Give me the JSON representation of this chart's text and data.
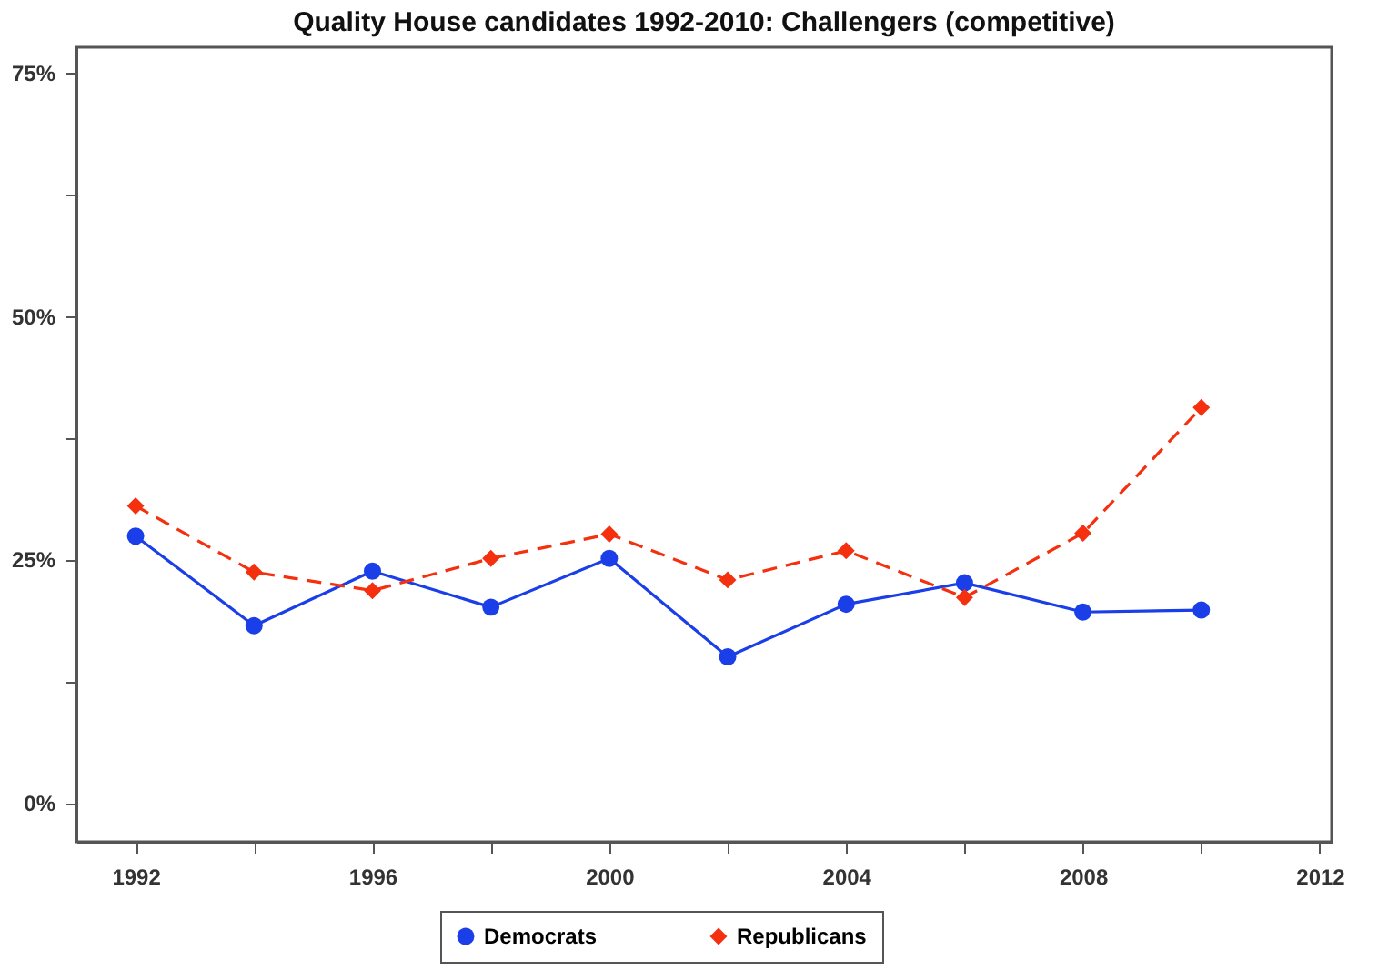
{
  "chart_data": {
    "type": "line",
    "title": "Quality House candidates 1992-2010: Challengers (competitive)",
    "x": [
      1992,
      1994,
      1996,
      1998,
      2000,
      2002,
      2004,
      2006,
      2008,
      2010
    ],
    "series": [
      {
        "name": "Democrats",
        "color": "#1a3fe8",
        "marker": "circle",
        "line_style": "solid",
        "values": [
          27.4,
          18.2,
          23.8,
          20.1,
          25.1,
          15.0,
          20.4,
          22.6,
          19.6,
          19.8
        ]
      },
      {
        "name": "Republicans",
        "color": "#f4300f",
        "marker": "diamond",
        "line_style": "dashed",
        "values": [
          30.5,
          23.7,
          21.8,
          25.1,
          27.6,
          22.9,
          25.9,
          21.1,
          27.7,
          40.6
        ]
      }
    ],
    "xlim": [
      1991,
      2012.2
    ],
    "xticks": [
      1992,
      {
        "value": 1994,
        "label": null
      },
      1996,
      {
        "value": 1998,
        "label": null
      },
      2000,
      {
        "value": 2002,
        "label": null
      },
      2004,
      {
        "value": 2006,
        "label": null
      },
      2008,
      {
        "value": 2010,
        "label": null
      },
      2012
    ],
    "ylim": [
      -4,
      77.6
    ],
    "yticks": [
      {
        "value": 0,
        "label": "0%"
      },
      {
        "value": 12.5,
        "label": null
      },
      {
        "value": 25,
        "label": "25%"
      },
      {
        "value": 37.5,
        "label": null
      },
      {
        "value": 50,
        "label": "50%"
      },
      {
        "value": 62.5,
        "label": null
      },
      {
        "value": 75,
        "label": "75%"
      }
    ],
    "grid": false,
    "legend": "bottom"
  }
}
